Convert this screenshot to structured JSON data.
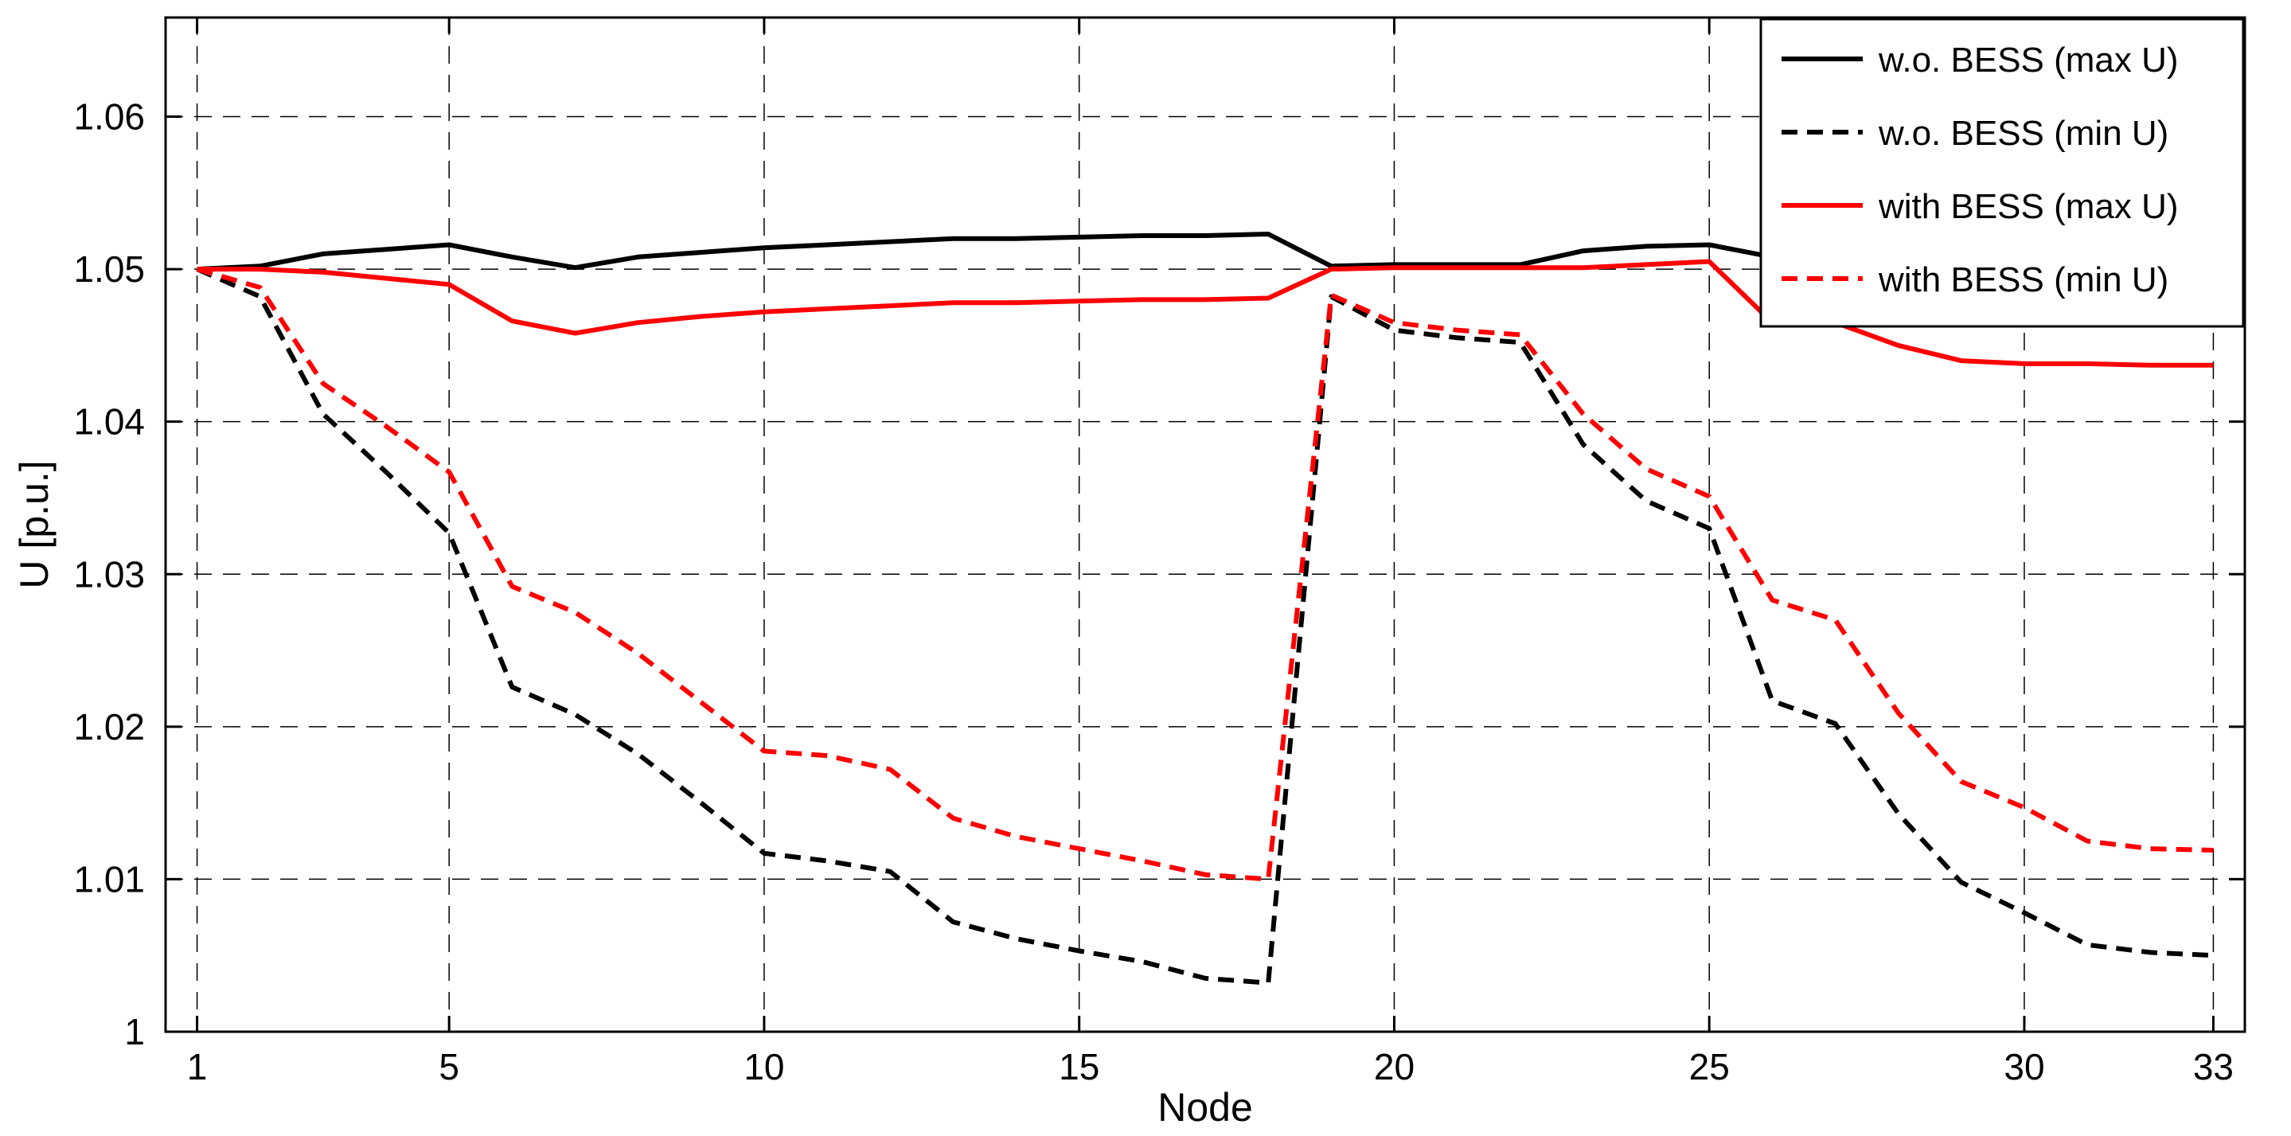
{
  "chart_data": {
    "type": "line",
    "title": "",
    "xlabel": "Node",
    "ylabel": "U [p.u.]",
    "xlim": [
      0.5,
      33.5
    ],
    "ylim": [
      1.0,
      1.0665
    ],
    "x_ticks": [
      1,
      5,
      10,
      15,
      20,
      25,
      30,
      33
    ],
    "x_tick_labels": [
      "1",
      "5",
      "10",
      "15",
      "20",
      "25",
      "30",
      "33"
    ],
    "y_ticks": [
      1.0,
      1.01,
      1.02,
      1.03,
      1.04,
      1.05,
      1.06
    ],
    "y_tick_labels": [
      "1",
      "1.01",
      "1.02",
      "1.03",
      "1.04",
      "1.05",
      "1.06"
    ],
    "grid": true,
    "legend_position": "top-right",
    "x": [
      1,
      2,
      3,
      4,
      5,
      6,
      7,
      8,
      9,
      10,
      11,
      12,
      13,
      14,
      15,
      16,
      17,
      18,
      19,
      20,
      21,
      22,
      23,
      24,
      25,
      26,
      27,
      28,
      29,
      30,
      31,
      32,
      33
    ],
    "series": [
      {
        "name": "w.o. BESS (max U)",
        "color": "#000000",
        "dash": "solid",
        "values": [
          1.05,
          1.0502,
          1.051,
          1.0513,
          1.0516,
          1.0508,
          1.0501,
          1.0508,
          1.0511,
          1.0514,
          1.0516,
          1.0518,
          1.052,
          1.052,
          1.0521,
          1.0522,
          1.0522,
          1.0523,
          1.0502,
          1.0503,
          1.0503,
          1.0503,
          1.0512,
          1.0515,
          1.0516,
          1.0508,
          1.0507,
          1.0493,
          1.0483,
          1.0481,
          1.0481,
          1.048,
          1.048
        ]
      },
      {
        "name": "w.o. BESS (min U)",
        "color": "#000000",
        "dash": "dashed",
        "values": [
          1.05,
          1.0482,
          1.0405,
          1.0367,
          1.0327,
          1.0226,
          1.0208,
          1.0182,
          1.015,
          1.0117,
          1.0112,
          1.0105,
          1.0072,
          1.0061,
          1.0053,
          1.0046,
          1.0035,
          1.0032,
          1.0482,
          1.046,
          1.0455,
          1.0452,
          1.0385,
          1.0348,
          1.033,
          1.0217,
          1.0202,
          1.0143,
          1.0098,
          1.0078,
          1.0057,
          1.0052,
          1.005
        ]
      },
      {
        "name": "with BESS (max U)",
        "color": "#ff0000",
        "dash": "solid",
        "values": [
          1.05,
          1.05,
          1.0498,
          1.0494,
          1.049,
          1.0466,
          1.0458,
          1.0465,
          1.0469,
          1.0472,
          1.0474,
          1.0476,
          1.0478,
          1.0478,
          1.0479,
          1.048,
          1.048,
          1.0481,
          1.05,
          1.0501,
          1.0501,
          1.0501,
          1.0501,
          1.0503,
          1.0505,
          1.0465,
          1.0465,
          1.045,
          1.044,
          1.0438,
          1.0438,
          1.0437,
          1.0437
        ]
      },
      {
        "name": "with BESS (min U)",
        "color": "#ff0000",
        "dash": "dashed",
        "values": [
          1.05,
          1.0488,
          1.0425,
          1.0397,
          1.0367,
          1.0292,
          1.0275,
          1.0248,
          1.0216,
          1.0184,
          1.0181,
          1.0172,
          1.014,
          1.0128,
          1.012,
          1.0112,
          1.0103,
          1.01,
          1.0483,
          1.0465,
          1.046,
          1.0457,
          1.0405,
          1.0369,
          1.0351,
          1.0283,
          1.027,
          1.0209,
          1.0164,
          1.0147,
          1.0125,
          1.012,
          1.0119
        ]
      }
    ]
  }
}
